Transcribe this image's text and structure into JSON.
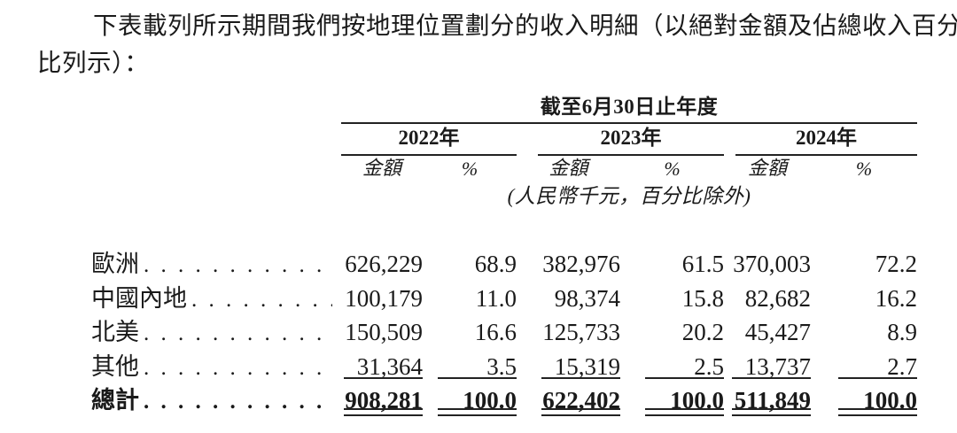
{
  "intro": {
    "line1": "下表載列所示期間我們按地理位置劃分的收入明細（以絕對金額及佔總收入百分",
    "line2": "比列示）："
  },
  "table": {
    "period_header": "截至6月30日止年度",
    "unit_note": "(人民幣千元，百分比除外)",
    "col_headers": {
      "amount": "金額",
      "percent": "%"
    },
    "year_groups": [
      {
        "label": "2022年"
      },
      {
        "label": "2023年"
      },
      {
        "label": "2024年"
      }
    ],
    "rows": [
      {
        "label": "歐洲",
        "cells": [
          "626,229",
          "68.9",
          "382,976",
          "61.5",
          "370,003",
          "72.2"
        ]
      },
      {
        "label": "中國內地",
        "cells": [
          "100,179",
          "11.0",
          "98,374",
          "15.8",
          "82,682",
          "16.2"
        ]
      },
      {
        "label": "北美",
        "cells": [
          "150,509",
          "16.6",
          "125,733",
          "20.2",
          "45,427",
          "8.9"
        ]
      },
      {
        "label": "其他",
        "cells": [
          "31,364",
          "3.5",
          "15,319",
          "2.5",
          "13,737",
          "2.7"
        ]
      },
      {
        "label": "總計",
        "cells": [
          "908,281",
          "100.0",
          "622,402",
          "100.0",
          "511,849",
          "100.0"
        ]
      }
    ]
  }
}
